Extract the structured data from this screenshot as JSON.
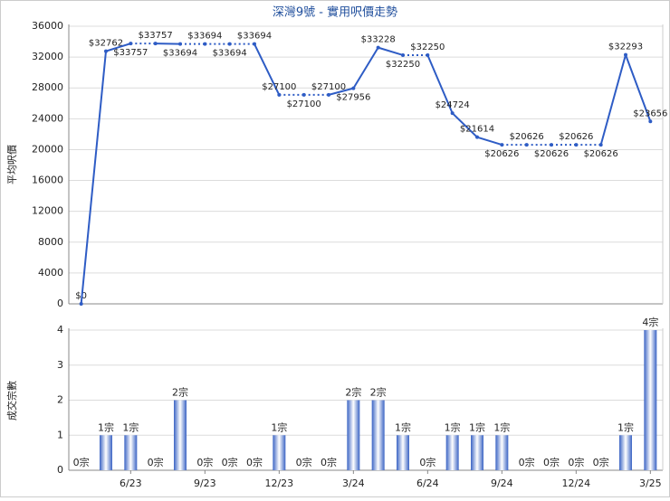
{
  "chart_data": [
    {
      "type": "line",
      "title": "深灣9號 - 實用呎價走勢",
      "y_label": "平均呎價",
      "color": "#2e5cc5",
      "values": [
        0,
        32762,
        33757,
        33757,
        33694,
        33694,
        33694,
        33694,
        27100,
        27100,
        27100,
        27956,
        33228,
        32250,
        32250,
        24724,
        21614,
        20626,
        20626,
        20626,
        20626,
        20626,
        32293,
        23656
      ],
      "value_labels": [
        "$0",
        "$32762",
        "$33757",
        "$33757",
        "$33694",
        "$33694",
        "$33694",
        "$33694",
        "$27100",
        "$27100",
        "$27100",
        "$27956",
        "$33228",
        "$32250",
        "$32250",
        "$24724",
        "$21614",
        "$20626",
        "$20626",
        "$20626",
        "$20626",
        "$20626",
        "$32293",
        "$23656"
      ],
      "ylim": [
        0,
        36000
      ],
      "yticks": [
        0,
        4000,
        8000,
        12000,
        16000,
        20000,
        24000,
        28000,
        32000,
        36000
      ],
      "grid": true
    },
    {
      "type": "bar",
      "y_label": "成交宗數",
      "color": "#3b64c4",
      "categories": [
        null,
        null,
        "6/23",
        null,
        null,
        "9/23",
        null,
        null,
        "12/23",
        null,
        null,
        "3/24",
        null,
        null,
        "6/24",
        null,
        null,
        "9/24",
        null,
        null,
        "12/24",
        null,
        null,
        "3/25"
      ],
      "values": [
        0,
        1,
        1,
        0,
        2,
        0,
        0,
        0,
        1,
        0,
        0,
        2,
        2,
        1,
        0,
        1,
        1,
        1,
        0,
        0,
        0,
        0,
        1,
        4
      ],
      "value_labels": [
        "0宗",
        "1宗",
        "1宗",
        "0宗",
        "2宗",
        "0宗",
        "0宗",
        "0宗",
        "1宗",
        "0宗",
        "0宗",
        "2宗",
        "2宗",
        "1宗",
        "0宗",
        "1宗",
        "1宗",
        "1宗",
        "0宗",
        "0宗",
        "0宗",
        "0宗",
        "1宗",
        "4宗"
      ],
      "ylim": [
        0,
        4
      ],
      "yticks": [
        0,
        1,
        2,
        3,
        4
      ],
      "grid": true
    }
  ]
}
